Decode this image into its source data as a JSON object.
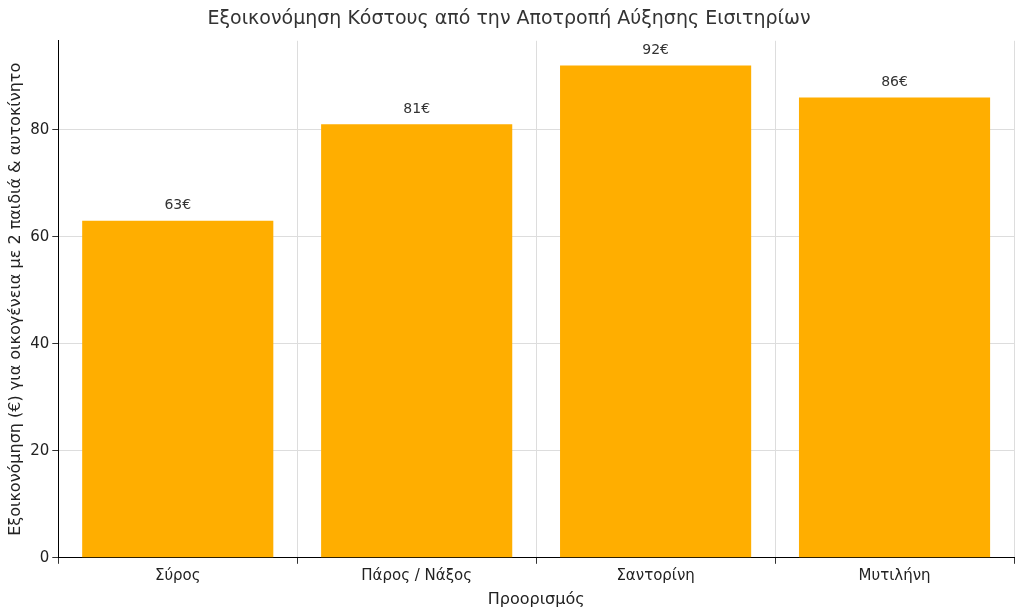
{
  "chart_data": {
    "type": "bar",
    "title": "Εξοικονόμηση Κόστους από την Αποτροπή Αύξησης Εισιτηρίων",
    "xlabel": "Προορισμός",
    "ylabel": "Εξοικονόμηση (€) για οικογένεια με 2 παιδιά & αυτοκίνητο",
    "categories": [
      "Σύρος",
      "Πάρος / Νάξος",
      "Σαντορίνη",
      "Μυτιλήνη"
    ],
    "values": [
      63,
      81,
      92,
      86
    ],
    "value_labels": [
      "63€",
      "81€",
      "92€",
      "86€"
    ],
    "color": "#ffae00",
    "ylim": [
      0,
      96.6
    ],
    "yticks": [
      0,
      20,
      40,
      60,
      80
    ],
    "grid": true,
    "legend": false
  }
}
